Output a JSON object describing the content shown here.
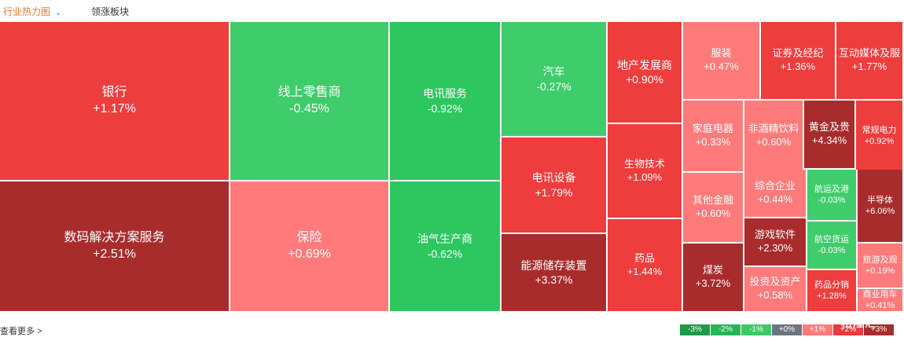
{
  "header": {
    "tab_active": "行业热力图",
    "tab_other": "领涨板块"
  },
  "footer": {
    "more_label": "查看更多",
    "more_arrow": ">"
  },
  "watermark": "格隆汇",
  "legend": [
    {
      "label": "-3%",
      "color": "#1e9a48"
    },
    {
      "label": "-2%",
      "color": "#27b456"
    },
    {
      "label": "-1%",
      "color": "#3ec865"
    },
    {
      "label": "+0%",
      "color": "#6e7480"
    },
    {
      "label": "+1%",
      "color": "#ff7b7b"
    },
    {
      "label": "+2%",
      "color": "#e83b3b"
    },
    {
      "label": "+3%",
      "color": "#a82a2a"
    }
  ],
  "chart_data": {
    "type": "heatmap",
    "subtype": "treemap",
    "cells": [
      {
        "name": "银行",
        "value": "+1.17%"
      },
      {
        "name": "数码解决方案服务",
        "value": "+2.51%"
      },
      {
        "name": "线上零售商",
        "value": "-0.45%"
      },
      {
        "name": "保险",
        "value": "+0.69%"
      },
      {
        "name": "电讯服务",
        "value": "-0.92%"
      },
      {
        "name": "油气生产商",
        "value": "-0.62%"
      },
      {
        "name": "汽车",
        "value": "-0.27%"
      },
      {
        "name": "电讯设备",
        "value": "+1.79%"
      },
      {
        "name": "能源储存装置",
        "value": "+3.37%"
      },
      {
        "name": "地产发展商",
        "value": "+0.90%"
      },
      {
        "name": "生物技术",
        "value": "+1.09%"
      },
      {
        "name": "药品",
        "value": "+1.44%"
      },
      {
        "name": "服装",
        "value": "+0.47%"
      },
      {
        "name": "证券及经纪",
        "value": "+1.36%"
      },
      {
        "name": "互动媒体及服",
        "value": "+1.77%"
      },
      {
        "name": "家庭电器",
        "value": "+0.33%"
      },
      {
        "name": "非酒精饮料",
        "value": "+0.60%"
      },
      {
        "name": "黄金及贵",
        "value": "+4.34%"
      },
      {
        "name": "常规电力",
        "value": "+0.92%"
      },
      {
        "name": "其他金融",
        "value": "+0.60%"
      },
      {
        "name": "综合企业",
        "value": "+0.44%"
      },
      {
        "name": "航运及港",
        "value": "-0.03%"
      },
      {
        "name": "半导体",
        "value": "+6.06%"
      },
      {
        "name": "游戏软件",
        "value": "+2.30%"
      },
      {
        "name": "航空货运",
        "value": "-0.03%"
      },
      {
        "name": "旅游及观",
        "value": "+0.19%"
      },
      {
        "name": "煤炭",
        "value": "+3.72%"
      },
      {
        "name": "投资及资产",
        "value": "+0.58%"
      },
      {
        "name": "药品分销",
        "value": "+1.28%"
      },
      {
        "name": "商业用车",
        "value": "+0.41%"
      }
    ]
  }
}
